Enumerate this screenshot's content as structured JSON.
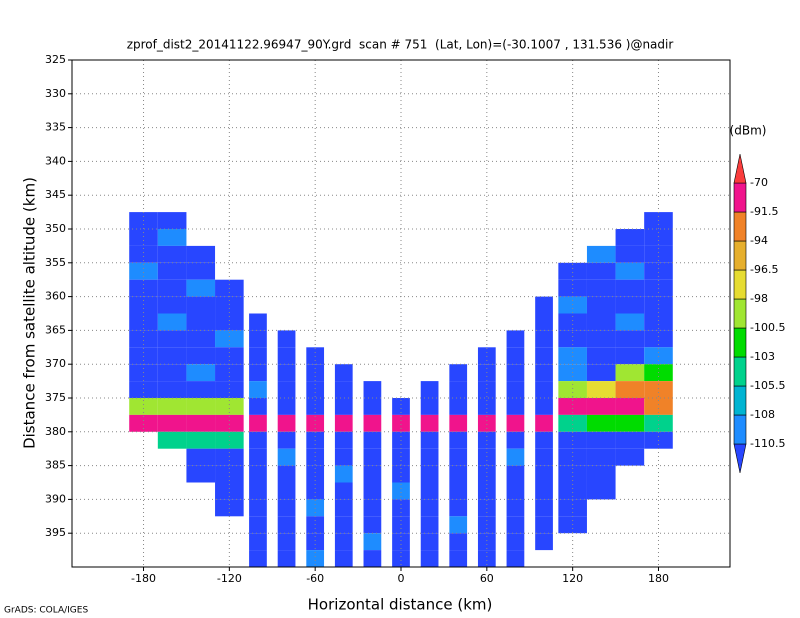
{
  "chart_data": {
    "type": "heatmap",
    "title": "zprof_dist2_20141122.96947_90Y.grd  scan # 751  (Lat, Lon)=(-30.1007 , 131.536 )@nadir",
    "x_label": "Horizontal distance (km)",
    "y_label": "Distance from satellite altitude (km)",
    "colorbar_label": "(dBm)",
    "credit": "GrADS: COLA/IGES",
    "xlim": [
      -230,
      230
    ],
    "xticks": [
      -180,
      -120,
      -60,
      0,
      60,
      120,
      180
    ],
    "ylim": [
      325,
      400
    ],
    "y_inverted": true,
    "yticks": [
      325,
      330,
      335,
      340,
      345,
      350,
      355,
      360,
      365,
      370,
      375,
      380,
      385,
      390,
      395
    ],
    "grid": true,
    "levels": [
      -110.5,
      -108,
      -105.5,
      -103,
      -100.5,
      -98,
      -96.5,
      -94,
      -91.5,
      -70
    ],
    "colors": [
      "#2846ff",
      "#1e8cff",
      "#00b4d2",
      "#00d28c",
      "#00dc00",
      "#a0e632",
      "#e6dc32",
      "#e6af2d",
      "#f08228",
      "#f0148c",
      "#fa3c3c"
    ],
    "x": [
      -180,
      -160,
      -140,
      -120,
      -100,
      -80,
      -60,
      -40,
      -20,
      0,
      20,
      40,
      60,
      80,
      100,
      120,
      140,
      160,
      180
    ],
    "y": [
      346.25,
      348.75,
      351.25,
      353.75,
      356.25,
      358.75,
      361.25,
      363.75,
      366.25,
      368.75,
      371.25,
      373.75,
      376.25,
      378.75,
      381.25,
      383.75,
      386.25,
      388.75,
      391.25,
      393.75,
      396.25,
      398.75
    ],
    "values": [
      [
        null,
        null,
        null,
        null,
        null,
        null,
        null,
        null,
        null,
        null,
        null,
        null,
        null,
        null,
        null,
        null,
        null,
        null,
        null
      ],
      [
        -112,
        -112,
        null,
        null,
        null,
        null,
        null,
        null,
        null,
        null,
        null,
        null,
        null,
        null,
        null,
        null,
        null,
        null,
        -112
      ],
      [
        -112,
        -109,
        null,
        null,
        null,
        null,
        null,
        null,
        null,
        null,
        null,
        null,
        null,
        null,
        null,
        null,
        null,
        -112,
        -112
      ],
      [
        -112,
        -112,
        -112,
        null,
        null,
        null,
        null,
        null,
        null,
        null,
        null,
        null,
        null,
        null,
        null,
        null,
        -109,
        -112,
        -112
      ],
      [
        -109,
        -112,
        -112,
        null,
        null,
        null,
        null,
        null,
        null,
        null,
        null,
        null,
        null,
        null,
        null,
        -112,
        -112,
        -109,
        -112
      ],
      [
        -112,
        -112,
        -109,
        -112,
        null,
        null,
        null,
        null,
        null,
        null,
        null,
        null,
        null,
        null,
        null,
        -112,
        -112,
        -112,
        -112
      ],
      [
        -112,
        -112,
        -112,
        -112,
        null,
        null,
        null,
        null,
        null,
        null,
        null,
        null,
        null,
        null,
        -112,
        -109,
        -112,
        -112,
        -112
      ],
      [
        -112,
        -109,
        -112,
        -112,
        -112,
        null,
        null,
        null,
        null,
        null,
        null,
        null,
        null,
        null,
        -112,
        -112,
        -112,
        -109,
        -112
      ],
      [
        -112,
        -112,
        -112,
        -109,
        -112,
        -112,
        null,
        null,
        null,
        null,
        null,
        null,
        null,
        -112,
        -112,
        -112,
        -112,
        -112,
        -112
      ],
      [
        -112,
        -112,
        -112,
        -112,
        -112,
        -112,
        -112,
        null,
        null,
        null,
        null,
        null,
        -112,
        -112,
        -112,
        -109,
        -112,
        -112,
        -109
      ],
      [
        -112,
        -112,
        -109,
        -112,
        -112,
        -112,
        -112,
        -112,
        null,
        null,
        null,
        -112,
        -112,
        -112,
        -112,
        -109,
        -112,
        -100,
        -101
      ],
      [
        -112,
        -112,
        -112,
        -112,
        -109,
        -112,
        -112,
        -112,
        -112,
        null,
        -112,
        -112,
        -112,
        -112,
        -112,
        -100,
        -97,
        -93,
        -92
      ],
      [
        -100,
        -100,
        -100,
        -100,
        -112,
        -112,
        -112,
        -112,
        -112,
        -112,
        -112,
        -112,
        -112,
        -112,
        -112,
        -85,
        -88,
        -90,
        -94
      ],
      [
        -80,
        -80,
        -80,
        -80,
        -85,
        -85,
        -85,
        -85,
        -85,
        -85,
        -85,
        -85,
        -85,
        -85,
        -85,
        -104,
        -103,
        -103,
        -104
      ],
      [
        null,
        -105,
        -105,
        -105,
        -112,
        -112,
        -112,
        -112,
        -112,
        -112,
        -112,
        -112,
        -112,
        -112,
        -112,
        -112,
        -112,
        -112,
        -112
      ],
      [
        null,
        null,
        -112,
        -112,
        -112,
        -109,
        -112,
        -112,
        -112,
        -112,
        -112,
        -112,
        -112,
        -109,
        -112,
        -112,
        -112,
        -112,
        null
      ],
      [
        null,
        null,
        -112,
        -112,
        -112,
        -112,
        -112,
        -109,
        -112,
        -112,
        -112,
        -112,
        -112,
        -112,
        -112,
        -112,
        -112,
        null,
        null
      ],
      [
        null,
        null,
        null,
        -112,
        -112,
        -112,
        -112,
        -112,
        -112,
        -109,
        -112,
        -112,
        -112,
        -112,
        -112,
        -112,
        -112,
        null,
        null
      ],
      [
        null,
        null,
        null,
        -112,
        -112,
        -112,
        -109,
        -112,
        -112,
        -112,
        -112,
        -112,
        -112,
        -112,
        -112,
        -112,
        null,
        null,
        null
      ],
      [
        null,
        null,
        null,
        null,
        -112,
        -112,
        -112,
        -112,
        -112,
        -112,
        -112,
        -109,
        -112,
        -112,
        -112,
        -112,
        null,
        null,
        null
      ],
      [
        null,
        null,
        null,
        null,
        -112,
        -112,
        -112,
        -112,
        -109,
        -112,
        -112,
        -112,
        -112,
        -112,
        -112,
        null,
        null,
        null,
        null
      ],
      [
        null,
        null,
        null,
        null,
        -112,
        -112,
        -109,
        -112,
        -112,
        -112,
        -112,
        -112,
        -112,
        -112,
        null,
        null,
        null,
        null,
        null
      ]
    ]
  }
}
